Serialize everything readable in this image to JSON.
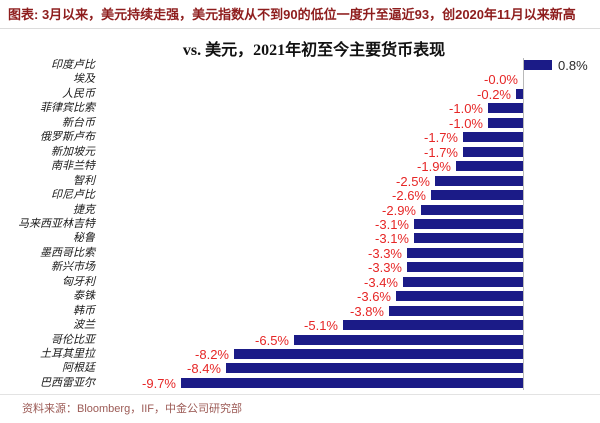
{
  "header": {
    "title": "图表: 3月以来，美元持续走强，美元指数从不到90的低位一度升至逼近93，创2020年11月以来新高"
  },
  "chart_data": {
    "type": "bar",
    "orientation": "horizontal",
    "title": "vs. 美元，2021年初至今主要货币表现",
    "categories": [
      "印度卢比",
      "埃及",
      "人民币",
      "菲律宾比索",
      "新台币",
      "俄罗斯卢布",
      "新加坡元",
      "南非兰特",
      "智利",
      "印尼卢比",
      "捷克",
      "马来西亚林吉特",
      "秘鲁",
      "墨西哥比索",
      "新兴市场",
      "匈牙利",
      "泰铢",
      "韩币",
      "波兰",
      "哥伦比亚",
      "土耳其里拉",
      "阿根廷",
      "巴西雷亚尔"
    ],
    "values": [
      0.8,
      -0.0,
      -0.2,
      -1.0,
      -1.0,
      -1.7,
      -1.7,
      -1.9,
      -2.5,
      -2.6,
      -2.9,
      -3.1,
      -3.1,
      -3.3,
      -3.3,
      -3.4,
      -3.6,
      -3.8,
      -5.1,
      -6.5,
      -8.2,
      -8.4,
      -9.7
    ],
    "value_labels": [
      "0.8%",
      "-0.0%",
      "-0.2%",
      "-1.0%",
      "-1.0%",
      "-1.7%",
      "-1.7%",
      "-1.9%",
      "-2.5%",
      "-2.6%",
      "-2.9%",
      "-3.1%",
      "-3.1%",
      "-3.3%",
      "-3.3%",
      "-3.4%",
      "-3.6%",
      "-3.8%",
      "-5.1%",
      "-6.5%",
      "-8.2%",
      "-8.4%",
      "-9.7%"
    ],
    "xlim": [
      -10,
      1
    ],
    "grid": false,
    "legend": "none",
    "bar_color": "#1b1b87",
    "negative_label_color": "#e62626",
    "positive_label_color": "#2b2b2b"
  },
  "colors": {
    "caption_red": "#8e1d1d",
    "source_red": "#9c5b56",
    "axis_gray": "#b9b9b9"
  },
  "footer": {
    "source": "资料来源：Bloomberg，IIF，中金公司研究部"
  }
}
